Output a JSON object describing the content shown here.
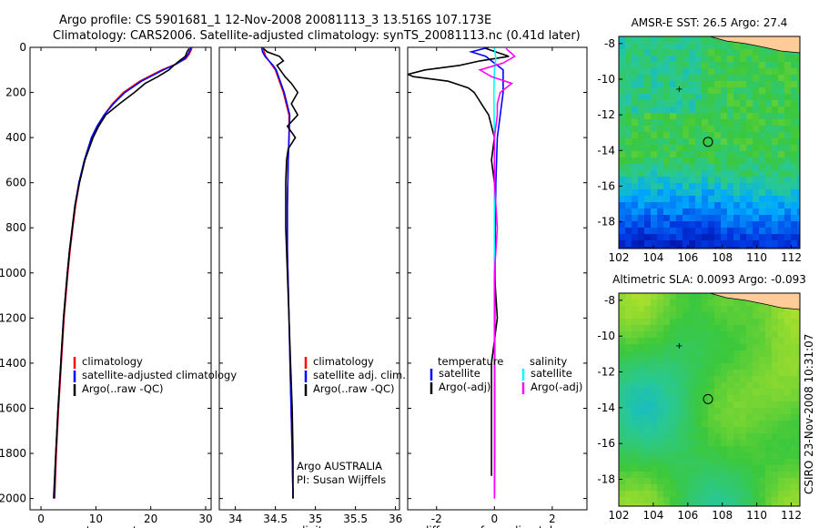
{
  "figure": {
    "title_line1": "Argo profile: CS 5901681_1 12-Nov-2008 20081113_3 13.516S 107.173E",
    "title_line2": "Climatology: CARS2006. Satellite-adjusted climatology: synTS_20081113.nc (0.41d later)",
    "side_label": "CSIRO 23-Nov-2008 10:31:07",
    "credit_line1": "Argo AUSTRALIA",
    "credit_line2": "PI: Susan Wijffels"
  },
  "colors": {
    "climatology": "#ff0000",
    "satellite": "#0000ff",
    "argo": "#000000",
    "sal_satellite": "#00ffff",
    "sal_argo": "#ff00ff",
    "land": "#ffcc99"
  },
  "chart_data": [
    {
      "type": "line",
      "name": "temperature-profile",
      "xlabel": "temperature",
      "ylabel": "",
      "xlim": [
        -2,
        31
      ],
      "ylim": [
        0,
        2050
      ],
      "y_reversed": true,
      "xticks": [
        "0",
        "10",
        "20",
        "30"
      ],
      "xtick_values": [
        0,
        10,
        20,
        30
      ],
      "yticks": [
        "0",
        "200",
        "400",
        "600",
        "800",
        "1000",
        "1200",
        "1400",
        "1600",
        "1800",
        "2000"
      ],
      "ytick_values": [
        0,
        200,
        400,
        600,
        800,
        1000,
        1200,
        1400,
        1600,
        1800,
        2000
      ],
      "legend": [
        "climatology",
        "satellite-adjusted climatology",
        "Argo(..raw -QC)"
      ],
      "series": [
        {
          "name": "climatology",
          "color": "#ff0000",
          "depth": [
            0,
            10,
            30,
            50,
            75,
            100,
            150,
            200,
            250,
            300,
            350,
            400,
            500,
            600,
            700,
            800,
            900,
            1000,
            1200,
            1400,
            1600,
            1800,
            2000
          ],
          "values": [
            27.5,
            27.4,
            27.0,
            26.4,
            24.5,
            22.0,
            18.0,
            15.0,
            13.0,
            11.5,
            10.3,
            9.3,
            8.0,
            7.0,
            6.3,
            5.8,
            5.3,
            4.9,
            4.2,
            3.7,
            3.2,
            2.8,
            2.5
          ]
        },
        {
          "name": "satellite-adjusted climatology",
          "color": "#0000ff",
          "depth": [
            0,
            10,
            30,
            50,
            75,
            100,
            150,
            200,
            250,
            300,
            350,
            400,
            500,
            600,
            700,
            800,
            900,
            1000,
            1200,
            1400,
            1600,
            1800,
            2000
          ],
          "values": [
            27.3,
            27.2,
            26.8,
            26.2,
            24.6,
            22.3,
            18.3,
            15.3,
            13.2,
            11.5,
            10.2,
            9.2,
            7.9,
            6.9,
            6.2,
            5.7,
            5.2,
            4.8,
            4.1,
            3.6,
            3.1,
            2.7,
            2.4
          ]
        },
        {
          "name": "Argo(..raw -QC)",
          "color": "#000000",
          "depth": [
            5,
            20,
            40,
            60,
            80,
            100,
            130,
            160,
            200,
            250,
            300,
            350,
            400,
            500,
            600,
            700,
            800,
            900,
            1000,
            1200,
            1400,
            1600,
            1800,
            2000
          ],
          "values": [
            27.0,
            26.6,
            26.3,
            25.2,
            24.2,
            23.3,
            21.3,
            19.0,
            17.0,
            14.3,
            11.8,
            10.5,
            9.5,
            8.0,
            7.0,
            6.2,
            5.7,
            5.2,
            4.8,
            4.1,
            3.6,
            3.1,
            2.7,
            2.3
          ]
        }
      ]
    },
    {
      "type": "line",
      "name": "salinity-profile",
      "xlabel": "salinity",
      "ylabel": "",
      "xlim": [
        33.8,
        36.05
      ],
      "ylim": [
        0,
        2050
      ],
      "y_reversed": true,
      "xticks": [
        "34",
        "34.5",
        "35",
        "35.5",
        "36"
      ],
      "xtick_values": [
        34,
        34.5,
        35,
        35.5,
        36
      ],
      "legend": [
        "climatology",
        "satellite adj. clim.",
        "Argo(..raw -QC)"
      ],
      "series": [
        {
          "name": "climatology",
          "color": "#ff0000",
          "depth": [
            0,
            20,
            40,
            60,
            80,
            100,
            150,
            200,
            300,
            400,
            500,
            700,
            900,
            1200,
            1500,
            1800,
            2000
          ],
          "values": [
            34.35,
            34.36,
            34.38,
            34.42,
            34.46,
            34.5,
            34.55,
            34.6,
            34.67,
            34.67,
            34.66,
            34.65,
            34.65,
            34.67,
            34.69,
            34.71,
            34.72
          ]
        },
        {
          "name": "satellite adj. clim.",
          "color": "#0000ff",
          "depth": [
            0,
            20,
            40,
            60,
            80,
            100,
            150,
            200,
            300,
            400,
            500,
            700,
            900,
            1200,
            1500,
            1800,
            2000
          ],
          "values": [
            34.33,
            34.34,
            34.37,
            34.42,
            34.47,
            34.51,
            34.56,
            34.61,
            34.68,
            34.67,
            34.66,
            34.65,
            34.65,
            34.67,
            34.69,
            34.71,
            34.72
          ]
        },
        {
          "name": "Argo(..raw -QC)",
          "color": "#000000",
          "depth": [
            5,
            20,
            40,
            60,
            80,
            100,
            130,
            160,
            200,
            250,
            300,
            350,
            400,
            450,
            500,
            600,
            700,
            800,
            900,
            1000,
            1200,
            1400,
            1600,
            1800,
            2000
          ],
          "values": [
            34.35,
            34.4,
            34.55,
            34.6,
            34.52,
            34.56,
            34.62,
            34.7,
            34.78,
            34.7,
            34.78,
            34.65,
            34.75,
            34.66,
            34.64,
            34.63,
            34.63,
            34.63,
            34.64,
            34.65,
            34.67,
            34.69,
            34.71,
            34.72,
            34.72
          ]
        }
      ]
    },
    {
      "type": "line",
      "name": "difference-from-climatology",
      "xlabel": "difference from climatology",
      "ylabel": "",
      "xlim": [
        -3,
        3.2
      ],
      "ylim": [
        0,
        2050
      ],
      "y_reversed": true,
      "xticks": [
        "-2",
        "0",
        "2"
      ],
      "xtick_values": [
        -2,
        0,
        2
      ],
      "legend_titles": [
        "temperature",
        "salinity"
      ],
      "legend": [
        "satellite",
        "Argo(-adj)",
        "satellite",
        "Argo(-adj)"
      ],
      "series": [
        {
          "name": "satellite",
          "color": "#0000ff",
          "depth": [
            0,
            20,
            40,
            60,
            80,
            100,
            150,
            200,
            300,
            400,
            600,
            800,
            1000,
            1400,
            1800,
            2000
          ],
          "values": [
            -0.2,
            -0.8,
            -0.3,
            -0.1,
            0.1,
            0.3,
            0.3,
            0.3,
            0.2,
            0.1,
            0.05,
            0.03,
            0.02,
            0.01,
            0.01,
            0.0
          ]
        },
        {
          "name": "Argo(-adj)",
          "color": "#000000",
          "depth": [
            5,
            40,
            60,
            80,
            100,
            120,
            130,
            150,
            180,
            200,
            220,
            260,
            300,
            400,
            500,
            600,
            800,
            1000,
            1200,
            1400,
            1600,
            1800,
            1900
          ],
          "values": [
            -0.3,
            0.5,
            -0.5,
            -1.2,
            -2.4,
            -3.0,
            -2.8,
            -1.6,
            -0.9,
            -0.7,
            -0.6,
            -0.4,
            -0.2,
            0.0,
            -0.1,
            0.0,
            0.0,
            0.0,
            0.1,
            -0.1,
            -0.1,
            -0.1,
            -0.1
          ]
        },
        {
          "name": "satellite",
          "color": "#00ffff",
          "depth": [
            0,
            50,
            100,
            200,
            400,
            600,
            800,
            1000,
            1400,
            1800,
            2000
          ],
          "values": [
            0.0,
            0.05,
            0.0,
            -0.02,
            0.0,
            0.0,
            0.0,
            0.0,
            0.0,
            0.0,
            0.0
          ]
        },
        {
          "name": "Argo(-adj)",
          "color": "#ff00ff",
          "depth": [
            5,
            40,
            70,
            100,
            130,
            160,
            200,
            250,
            300,
            400,
            600,
            800,
            1000,
            1400,
            1800,
            2000
          ],
          "values": [
            0.4,
            0.7,
            0.3,
            -0.5,
            -0.1,
            0.6,
            0.2,
            0.1,
            0.1,
            0.0,
            0.0,
            0.1,
            0.0,
            0.0,
            0.0,
            0.0
          ]
        }
      ]
    },
    {
      "type": "heatmap",
      "name": "sst-map",
      "title": "AMSR-E SST: 26.5 Argo: 27.4",
      "xlim": [
        102,
        112.5
      ],
      "ylim": [
        -19.5,
        -7.6
      ],
      "xticks": [
        "102",
        "104",
        "106",
        "108",
        "110",
        "112"
      ],
      "xtick_values": [
        102,
        104,
        106,
        108,
        110,
        112
      ],
      "yticks": [
        "-8",
        "-10",
        "-12",
        "-14",
        "-16",
        "-18"
      ],
      "ytick_values": [
        -8,
        -10,
        -12,
        -14,
        -16,
        -18
      ],
      "float_position": [
        107.173,
        -13.516
      ],
      "previous_position": [
        105.5,
        -10.5
      ]
    },
    {
      "type": "heatmap",
      "name": "sla-map",
      "title": "Altimetric SLA: 0.0093 Argo: -0.093",
      "xlim": [
        102,
        112.5
      ],
      "ylim": [
        -19.5,
        -7.6
      ],
      "xticks": [
        "102",
        "104",
        "106",
        "108",
        "110",
        "112"
      ],
      "xtick_values": [
        102,
        104,
        106,
        108,
        110,
        112
      ],
      "yticks": [
        "-8",
        "-10",
        "-12",
        "-14",
        "-16",
        "-18"
      ],
      "ytick_values": [
        -8,
        -10,
        -12,
        -14,
        -16,
        -18
      ],
      "float_position": [
        107.173,
        -13.516
      ],
      "previous_position": [
        105.5,
        -10.5
      ]
    }
  ]
}
